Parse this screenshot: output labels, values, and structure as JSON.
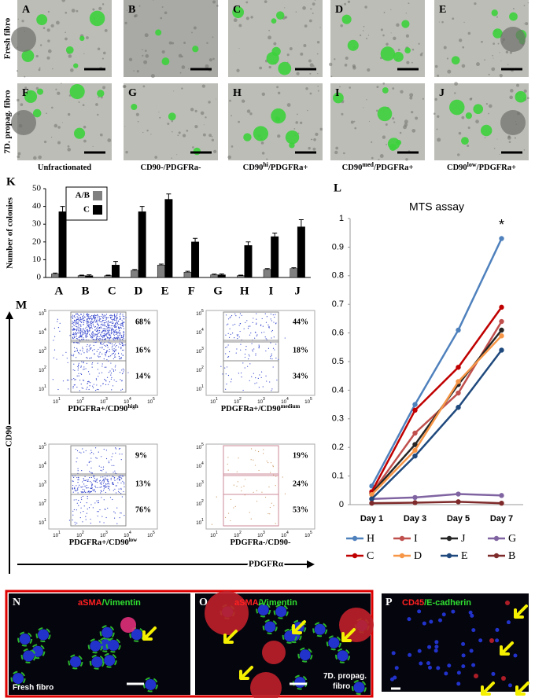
{
  "figure": {
    "top_letters": [
      "A",
      "B",
      "C",
      "D",
      "E",
      "F",
      "G",
      "H",
      "I",
      "J"
    ],
    "row_labels": [
      "Fresh fibro",
      "7D. propag. fibro"
    ],
    "column_labels": [
      {
        "text": "Unfractionated"
      },
      {
        "text": "CD90-/PDGFRa-"
      },
      {
        "text": "CD90",
        "sup": "hi",
        "after": "/PDGFRa+"
      },
      {
        "text": "CD90",
        "sup": "med",
        "after": "/PDGFRa+"
      },
      {
        "text": "CD90",
        "sup": "low",
        "after": "/PDGFRa+"
      }
    ]
  },
  "chart_data": [
    {
      "type": "bar",
      "panel_label": "K",
      "y_label": "Number of colonies",
      "categories": [
        "A",
        "B",
        "C",
        "D",
        "E",
        "F",
        "G",
        "H",
        "I",
        "J"
      ],
      "series": [
        {
          "name": "A/B",
          "color": "#808080",
          "values": [
            2,
            1,
            1,
            4,
            7,
            3,
            1.5,
            1,
            4.5,
            5
          ],
          "errors": [
            0.5,
            0.3,
            0.3,
            0.5,
            0.5,
            0.5,
            0.4,
            0.3,
            0.5,
            0.5
          ]
        },
        {
          "name": "C",
          "color": "#000000",
          "values": [
            37,
            1,
            7,
            37,
            44,
            20,
            1.5,
            18,
            23,
            28.5
          ],
          "errors": [
            3,
            0.5,
            2,
            3,
            3,
            2,
            0.5,
            2,
            2,
            4
          ]
        }
      ],
      "ylim": [
        0,
        50
      ],
      "yticks": [
        0,
        10,
        20,
        30,
        40,
        50
      ],
      "legend": "upper left"
    },
    {
      "type": "line",
      "panel_label": "L",
      "title": "MTS assay",
      "categories": [
        "Day 1",
        "Day 3",
        "Day 5",
        "Day 7"
      ],
      "series": [
        {
          "name": "H",
          "color": "#4f81bd",
          "values": [
            0.065,
            0.35,
            0.61,
            0.93
          ]
        },
        {
          "name": "I",
          "color": "#c0504d",
          "values": [
            0.04,
            0.25,
            0.39,
            0.64
          ]
        },
        {
          "name": "J",
          "color": "#262626",
          "values": [
            0.04,
            0.21,
            0.42,
            0.61
          ]
        },
        {
          "name": "G",
          "color": "#8064a2",
          "values": [
            0.02,
            0.025,
            0.037,
            0.032
          ]
        },
        {
          "name": "C",
          "color": "#c00000",
          "values": [
            0.045,
            0.33,
            0.48,
            0.69
          ]
        },
        {
          "name": "D",
          "color": "#f79646",
          "values": [
            0.035,
            0.19,
            0.43,
            0.59
          ]
        },
        {
          "name": "E",
          "color": "#1f497d",
          "values": [
            0.02,
            0.17,
            0.34,
            0.54
          ]
        },
        {
          "name": "B",
          "color": "#7f2a2a",
          "values": [
            0.005,
            0.007,
            0.01,
            0.005
          ]
        }
      ],
      "ylim": [
        0,
        1
      ],
      "yticks": [
        0,
        0.1,
        0.2,
        0.3,
        0.4,
        0.5,
        0.6,
        0.7,
        0.8,
        0.9,
        1
      ],
      "annotations": [
        "*"
      ],
      "legend": "bottom"
    }
  ],
  "flow": {
    "panel_label": "M",
    "y_axis": "CD90",
    "x_axis": "PDGFRα",
    "tick_base": "10",
    "tick_exponents": [
      "1",
      "2",
      "3",
      "4",
      "5"
    ],
    "plots": [
      {
        "label": {
          "text": "PDGFRa+/CD90",
          "sup": "high"
        },
        "gates": [
          "68%",
          "16%",
          "14%"
        ]
      },
      {
        "label": {
          "text": "PDGFRa+/CD90",
          "sup": "medium"
        },
        "gates": [
          "44%",
          "18%",
          "34%"
        ]
      },
      {
        "label": {
          "text": "PDGFRa+/CD90",
          "sup": "low"
        },
        "gates": [
          "9%",
          "13%",
          "76%"
        ]
      },
      {
        "label": {
          "text": "PDGFRa-/CD90-"
        },
        "gates": [
          "19%",
          "24%",
          "53%"
        ]
      }
    ]
  },
  "fluorescence": [
    {
      "letter": "N",
      "stain": [
        "aSMA",
        "/Vimentin"
      ],
      "caption": "Fresh fibro"
    },
    {
      "letter": "O",
      "stain": [
        "aSMA",
        "/Vimentin"
      ],
      "caption": "7D. propag. fibro"
    },
    {
      "letter": "P",
      "stain": [
        "CD45",
        "/E-cadherin"
      ]
    }
  ]
}
